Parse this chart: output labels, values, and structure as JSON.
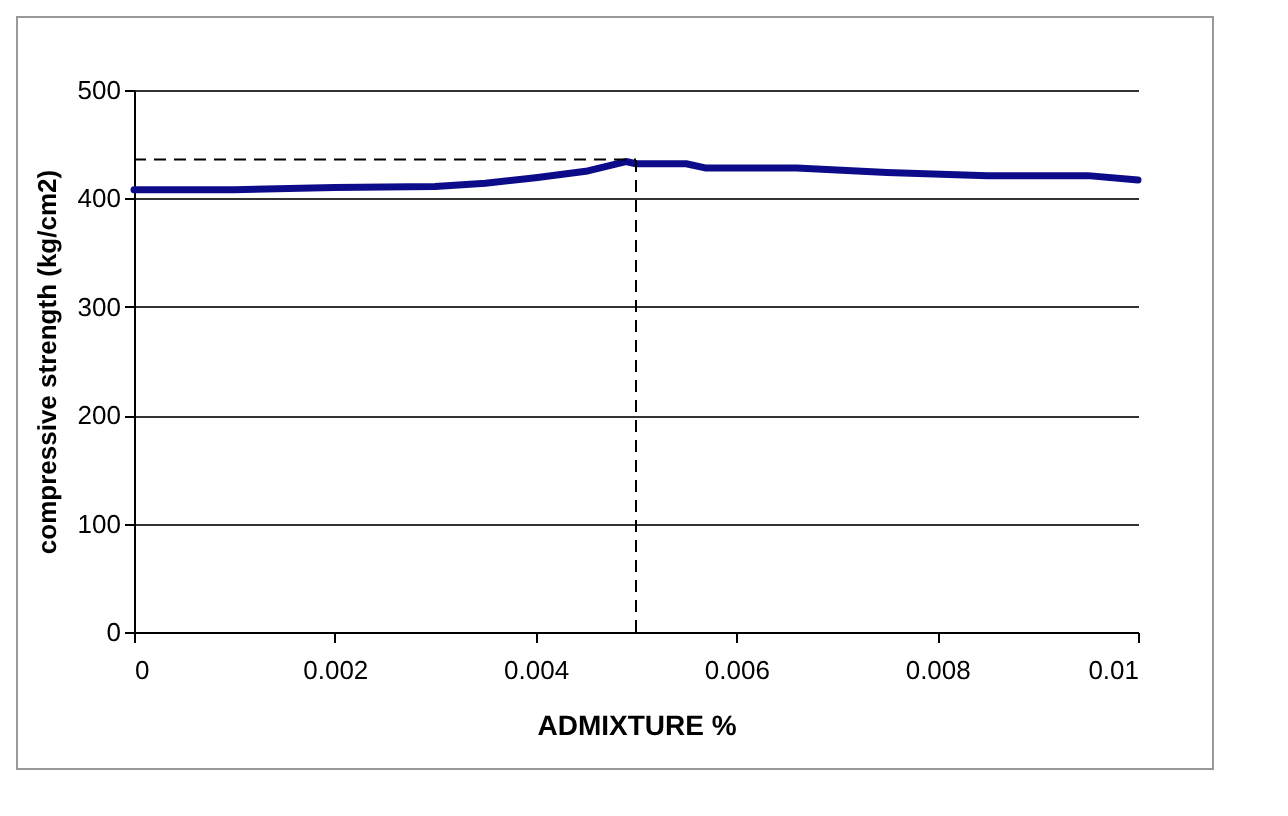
{
  "chart_data": {
    "type": "line",
    "xlabel": "ADMIXTURE %",
    "ylabel": "compressive strength (kg/cm2)",
    "x": [
      0,
      0.001,
      0.002,
      0.003,
      0.0035,
      0.004,
      0.0045,
      0.0049,
      0.005,
      0.0055,
      0.0057,
      0.0066,
      0.0075,
      0.0085,
      0.0095,
      0.01
    ],
    "series": [
      {
        "color": "#0c0c8a",
        "values": [
          408,
          408,
          410,
          411,
          414,
          419,
          425,
          434,
          432,
          432,
          428,
          428,
          424,
          421,
          421,
          417
        ]
      }
    ],
    "xlim": [
      0,
      0.01
    ],
    "xticks": [
      0,
      0.002,
      0.004,
      0.006,
      0.008,
      0.01
    ],
    "ylim": [
      0,
      500
    ],
    "yticks": [
      0,
      100,
      200,
      300,
      400,
      500
    ],
    "ref_lines": [
      {
        "axis": "x",
        "value": 0.005,
        "line_style": "dashed"
      },
      {
        "axis": "y",
        "value": 436,
        "line_style": "dashed"
      }
    ],
    "grid": "y",
    "marker": "none",
    "line_style": "solid"
  }
}
